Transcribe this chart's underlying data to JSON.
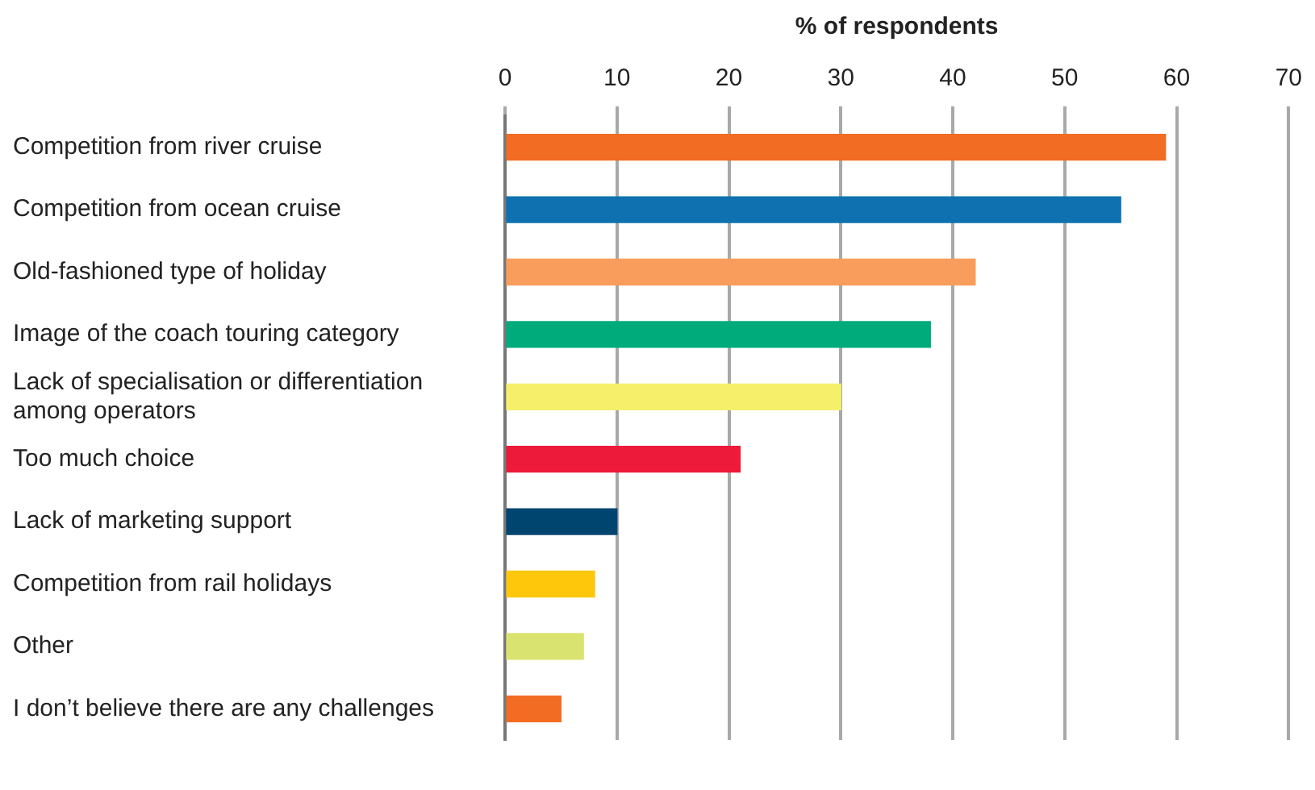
{
  "chart_data": {
    "type": "bar",
    "orientation": "horizontal",
    "xlabel": "% of respondents",
    "categories": [
      "Competition from river cruise",
      "Competition from ocean cruise",
      "Old-fashioned type of holiday",
      "Image of the coach touring category",
      "Lack of specialisation or differentiation among operators",
      "Too much choice",
      "Lack of marketing support",
      "Competition from rail holidays",
      "Other",
      "I don’t believe there are any challenges"
    ],
    "values": [
      59,
      55,
      42,
      38,
      30,
      21,
      10,
      8,
      7,
      5
    ],
    "colors": [
      "#f26c23",
      "#0f71b0",
      "#f89d5c",
      "#00ab7b",
      "#f6ef6a",
      "#ee1a39",
      "#004570",
      "#fec70b",
      "#d9e36f",
      "#f26c23"
    ],
    "xlim": [
      0,
      70
    ],
    "xticks": [
      0,
      10,
      20,
      30,
      40,
      50,
      60,
      70
    ],
    "grid": "x",
    "legend": false
  }
}
